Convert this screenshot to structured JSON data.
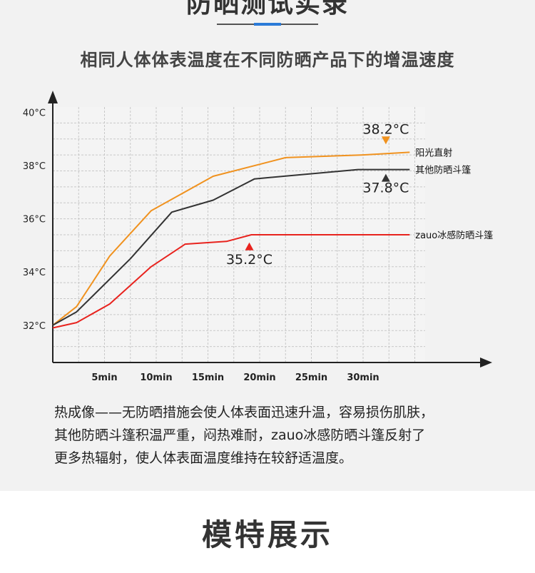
{
  "page": {
    "heading_top": "防晒测试实录",
    "heading_bottom": "模特展示",
    "accent_color": "#2b7bd8"
  },
  "chart_data": {
    "type": "line",
    "title": "相同人体体表温度在不同防晒产品下的增温速度",
    "xlabel": "",
    "ylabel": "",
    "x_ticks": [
      5,
      10,
      15,
      20,
      25,
      30
    ],
    "x_tick_labels": [
      "5min",
      "10min",
      "15min",
      "20min",
      "25min",
      "30min"
    ],
    "y_ticks": [
      32,
      34,
      36,
      38,
      40
    ],
    "y_tick_labels": [
      "32°C",
      "34°C",
      "36°C",
      "38°C",
      "40°C"
    ],
    "xlim": [
      0,
      36
    ],
    "ylim": [
      30.6,
      40.2
    ],
    "grid": true,
    "series": [
      {
        "name": "阳光直射",
        "color": "#f0921f",
        "x": [
          0,
          2.3,
          5.5,
          9.5,
          15.5,
          22.5,
          30,
          34.5
        ],
        "y": [
          32.0,
          32.7,
          34.6,
          36.3,
          37.6,
          38.3,
          38.4,
          38.5
        ]
      },
      {
        "name": "其他防晒斗篷",
        "color": "#333333",
        "x": [
          0,
          2.3,
          7.5,
          11.5,
          15.5,
          19.5,
          29.5,
          34.5
        ],
        "y": [
          32.0,
          32.5,
          34.5,
          36.25,
          36.7,
          37.5,
          37.85,
          37.85
        ]
      },
      {
        "name": "zauo冰感防晒斗篷",
        "color": "#e8231e",
        "x": [
          0,
          2.3,
          5.5,
          9.5,
          12.8,
          16.8,
          19.2,
          34.5
        ],
        "y": [
          31.9,
          32.1,
          32.8,
          34.2,
          35.05,
          35.15,
          35.4,
          35.4
        ]
      }
    ],
    "annotations": [
      {
        "text": "38.2°C",
        "series": "阳光直射",
        "marker": "down",
        "color": "#f0921f"
      },
      {
        "text": "37.8°C",
        "series": "其他防晒斗篷",
        "marker": "up",
        "color": "#333333"
      },
      {
        "text": "35.2°C",
        "series": "zauo冰感防晒斗篷",
        "marker": "up",
        "color": "#e8231e"
      }
    ]
  },
  "caption": {
    "line1": "热成像——无防晒措施会使人体表面迅速升温，容易损伤肌肤，",
    "line2": "其他防晒斗篷积温严重，闷热难耐，zauo冰感防晒斗篷反射了",
    "line3": "更多热辐射，使人体表面温度维持在较舒适温度。"
  }
}
